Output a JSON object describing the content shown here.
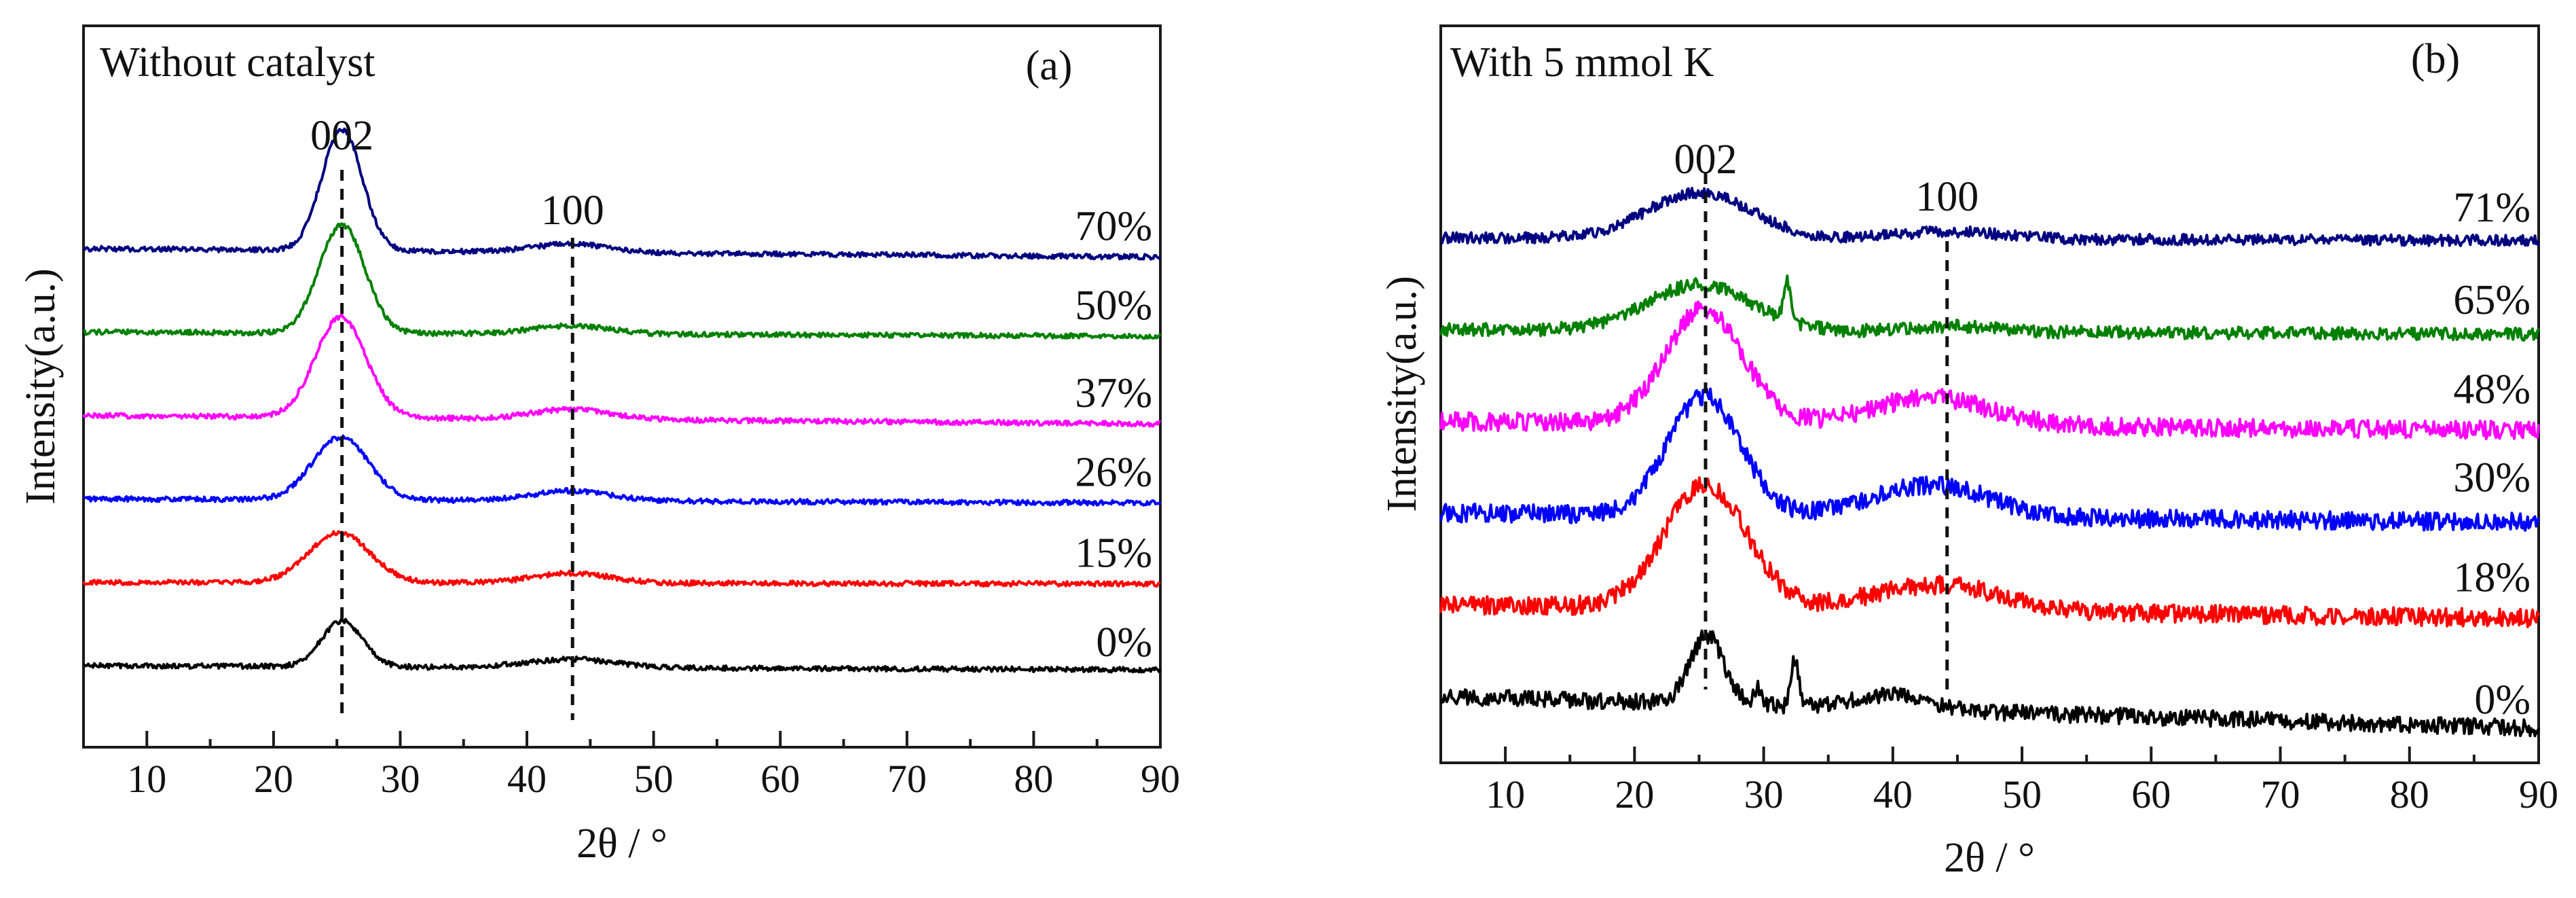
{
  "chart_data": [
    {
      "type": "line",
      "panel_label": "(a)",
      "title": "Without catalyst",
      "xlabel": "2θ / °",
      "ylabel": "Intensity(a.u.)",
      "xlim": [
        5,
        90
      ],
      "xticks": [
        "10",
        "20",
        "30",
        "40",
        "50",
        "60",
        "70",
        "80",
        "90"
      ],
      "grid": false,
      "peak_labels": [
        {
          "text": "002",
          "x": 25.4
        },
        {
          "text": "100",
          "x": 43.6
        }
      ],
      "series": [
        {
          "name": "0%",
          "color": "#000000",
          "offset": 1.0,
          "slope": -0.05,
          "noise": 0.03,
          "peaks": [
            {
              "x": 25.4,
              "amp": 0.55,
              "width": 1.6
            },
            {
              "x": 43.5,
              "amp": 0.1,
              "width": 3.5
            }
          ]
        },
        {
          "name": "15%",
          "color": "#ff0000",
          "offset": 2.0,
          "slope": -0.02,
          "noise": 0.03,
          "peaks": [
            {
              "x": 25.2,
              "amp": 0.6,
              "width": 2.4
            },
            {
              "x": 43.5,
              "amp": 0.12,
              "width": 3.0
            }
          ]
        },
        {
          "name": "26%",
          "color": "#0000ff",
          "offset": 3.0,
          "slope": -0.05,
          "noise": 0.03,
          "peaks": [
            {
              "x": 25.3,
              "amp": 0.75,
              "width": 2.2
            },
            {
              "x": 43.5,
              "amp": 0.12,
              "width": 3.0
            }
          ]
        },
        {
          "name": "37%",
          "color": "#ff00ff",
          "offset": 4.0,
          "slope": -0.1,
          "noise": 0.03,
          "peaks": [
            {
              "x": 25.3,
              "amp": 1.2,
              "width": 2.0
            },
            {
              "x": 43.5,
              "amp": 0.12,
              "width": 3.0
            }
          ]
        },
        {
          "name": "50%",
          "color": "#008000",
          "offset": 5.0,
          "slope": -0.05,
          "noise": 0.03,
          "peaks": [
            {
              "x": 25.4,
              "amp": 1.3,
              "width": 1.8
            },
            {
              "x": 43.5,
              "amp": 0.1,
              "width": 3.0
            }
          ]
        },
        {
          "name": "70%",
          "color": "#000080",
          "offset": 6.0,
          "slope": -0.1,
          "noise": 0.03,
          "peaks": [
            {
              "x": 25.4,
              "amp": 1.45,
              "width": 1.6
            },
            {
              "x": 43.5,
              "amp": 0.1,
              "width": 3.0
            }
          ]
        }
      ]
    },
    {
      "type": "line",
      "panel_label": "(b)",
      "title": "With 5 mmol K",
      "xlabel": "2θ / °",
      "ylabel": "Intensity(a.u.)",
      "xlim": [
        5,
        90
      ],
      "xticks": [
        "10",
        "20",
        "30",
        "40",
        "50",
        "60",
        "70",
        "80",
        "90"
      ],
      "grid": false,
      "peak_labels": [
        {
          "text": "002",
          "x": 25.5
        },
        {
          "text": "100",
          "x": 44.2
        }
      ],
      "series": [
        {
          "name": "0%",
          "color": "#000000",
          "offset": 1.0,
          "slope": -0.35,
          "noise": 0.09,
          "peaks": [
            {
              "x": 25.6,
              "amp": 0.75,
              "width": 1.3
            },
            {
              "x": 32.4,
              "amp": 0.5,
              "width": 0.3
            },
            {
              "x": 29.6,
              "amp": 0.2,
              "width": 0.3
            },
            {
              "x": 40.0,
              "amp": 0.15,
              "width": 3.0
            }
          ]
        },
        {
          "name": "18%",
          "color": "#ff0000",
          "offset": 2.0,
          "slope": -0.15,
          "noise": 0.1,
          "peaks": [
            {
              "x": 25.5,
              "amp": 1.35,
              "width": 3.2
            },
            {
              "x": 43.5,
              "amp": 0.28,
              "width": 5.0
            }
          ]
        },
        {
          "name": "30%",
          "color": "#0000ff",
          "offset": 3.0,
          "slope": -0.1,
          "noise": 0.1,
          "peaks": [
            {
              "x": 25.4,
              "amp": 1.3,
              "width": 2.8
            },
            {
              "x": 43.0,
              "amp": 0.35,
              "width": 4.5
            }
          ]
        },
        {
          "name": "48%",
          "color": "#ff00ff",
          "offset": 4.0,
          "slope": -0.1,
          "noise": 0.1,
          "peaks": [
            {
              "x": 25.4,
              "amp": 1.25,
              "width": 3.0
            },
            {
              "x": 43.0,
              "amp": 0.3,
              "width": 4.5
            }
          ]
        },
        {
          "name": "65%",
          "color": "#008000",
          "offset": 5.0,
          "slope": -0.05,
          "noise": 0.07,
          "peaks": [
            {
              "x": 25.0,
              "amp": 0.5,
              "width": 4.0
            },
            {
              "x": 31.8,
              "amp": 0.45,
              "width": 0.25
            },
            {
              "x": 45.0,
              "amp": 0.06,
              "width": 3.0
            }
          ]
        },
        {
          "name": "71%",
          "color": "#000080",
          "offset": 6.0,
          "slope": -0.03,
          "noise": 0.06,
          "peaks": [
            {
              "x": 25.0,
              "amp": 0.5,
              "width": 4.0
            },
            {
              "x": 44.5,
              "amp": 0.08,
              "width": 4.0
            }
          ]
        }
      ]
    }
  ]
}
